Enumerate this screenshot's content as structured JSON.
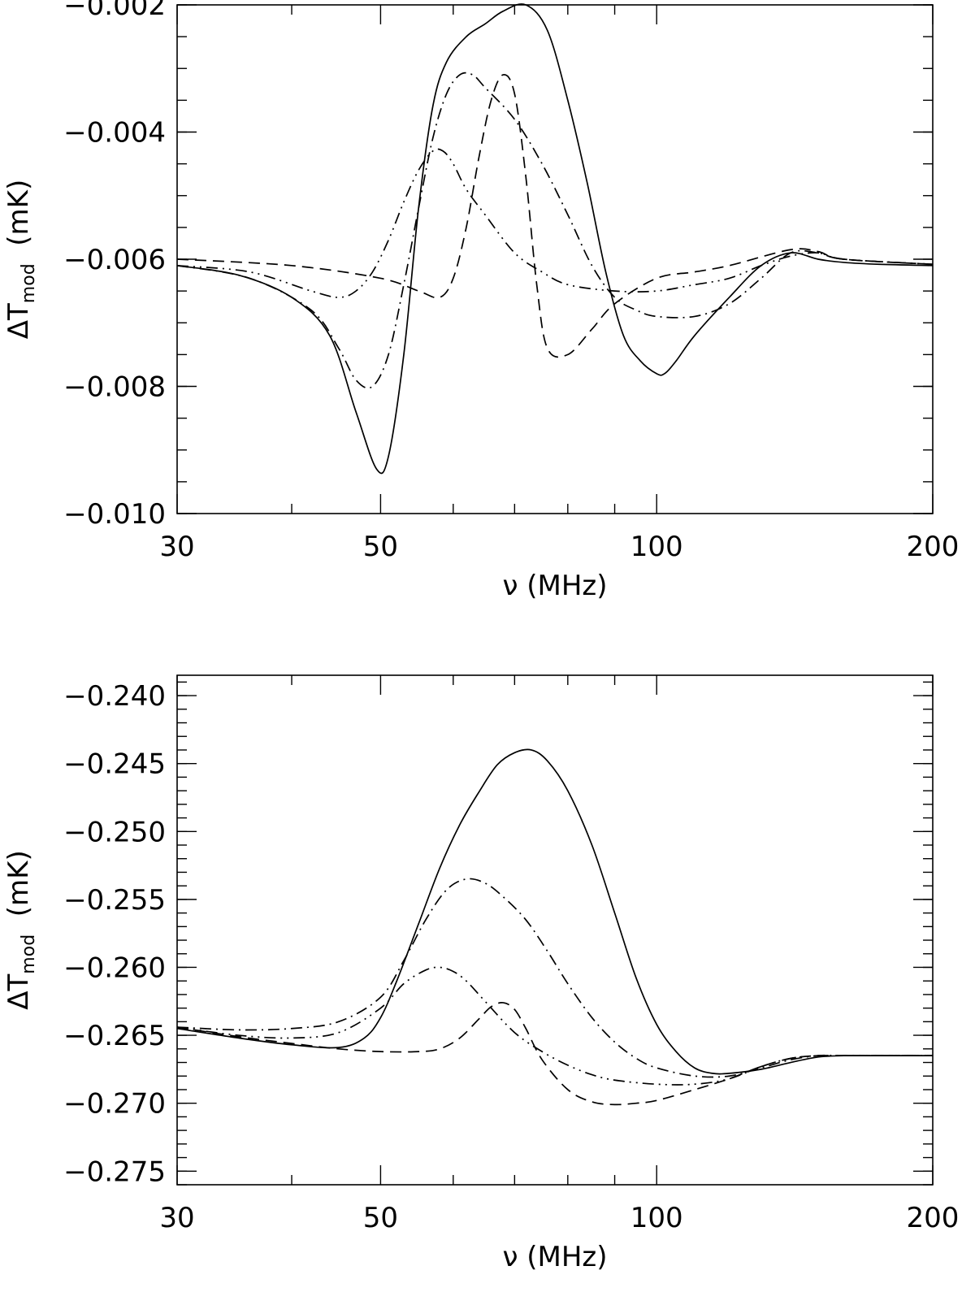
{
  "chart_data": [
    {
      "type": "line",
      "xlabel": "ν  (MHz)",
      "ylabel_main": "ΔT",
      "ylabel_sub": "mod",
      "ylabel_unit": "  (mK)",
      "xscale": "log",
      "xlim": [
        30,
        200
      ],
      "ylim": [
        -0.01,
        -0.002
      ],
      "xticks": [
        30,
        50,
        100,
        200
      ],
      "xtick_labels": [
        "30",
        "50",
        "100",
        "200"
      ],
      "yticks": [
        -0.01,
        -0.008,
        -0.006,
        -0.004,
        -0.002
      ],
      "ytick_labels": [
        "−0.010",
        "−0.008",
        "−0.006",
        "−0.004",
        "−0.002"
      ],
      "yminor_step": 0.0005,
      "grid": false,
      "series": [
        {
          "style": "solid",
          "x": [
            30,
            35,
            40,
            44,
            47,
            49.5,
            51,
            53,
            55,
            57,
            59,
            62,
            65,
            68,
            72,
            76,
            80,
            84,
            88,
            92,
            96,
            100,
            102,
            105,
            110,
            120,
            130,
            140,
            150,
            160,
            175,
            200
          ],
          "y": [
            -0.0061,
            -0.00625,
            -0.0066,
            -0.0072,
            -0.0084,
            -0.0093,
            -0.0091,
            -0.0075,
            -0.0052,
            -0.0036,
            -0.0029,
            -0.0025,
            -0.0023,
            -0.0021,
            -0.002,
            -0.0024,
            -0.0035,
            -0.0048,
            -0.0062,
            -0.0072,
            -0.0076,
            -0.0078,
            -0.0078,
            -0.0076,
            -0.0072,
            -0.0066,
            -0.0061,
            -0.0059,
            -0.006,
            -0.00605,
            -0.00608,
            -0.0061
          ]
        },
        {
          "style": "dash",
          "x": [
            30,
            40,
            50,
            55,
            58,
            60,
            62,
            64,
            66,
            68,
            70,
            72,
            74,
            76,
            80,
            85,
            90,
            100,
            110,
            120,
            140,
            150,
            160,
            200
          ],
          "y": [
            -0.006,
            -0.0061,
            -0.0063,
            -0.0065,
            -0.0066,
            -0.0063,
            -0.0055,
            -0.0044,
            -0.0035,
            -0.0031,
            -0.0034,
            -0.0047,
            -0.0064,
            -0.0074,
            -0.0075,
            -0.0071,
            -0.0067,
            -0.0063,
            -0.0062,
            -0.0061,
            -0.00585,
            -0.00588,
            -0.006,
            -0.00608
          ]
        },
        {
          "style": "dashdot",
          "x": [
            30,
            36,
            42,
            45,
            47,
            49,
            51,
            53,
            55,
            57,
            59,
            61,
            63,
            65,
            70,
            75,
            80,
            85,
            90,
            95,
            100,
            110,
            120,
            130,
            140,
            150,
            160,
            200
          ],
          "y": [
            -0.0061,
            -0.0063,
            -0.0068,
            -0.0074,
            -0.0079,
            -0.008,
            -0.0075,
            -0.0064,
            -0.0052,
            -0.0041,
            -0.0034,
            -0.0031,
            -0.0031,
            -0.0033,
            -0.0038,
            -0.0045,
            -0.0053,
            -0.0061,
            -0.0066,
            -0.0068,
            -0.0069,
            -0.0069,
            -0.0067,
            -0.0063,
            -0.0059,
            -0.0059,
            -0.006,
            -0.00608
          ]
        },
        {
          "style": "dashdotdot",
          "x": [
            30,
            36,
            42,
            45,
            47,
            49,
            51,
            53,
            55,
            57,
            58.5,
            60,
            62,
            65,
            70,
            75,
            80,
            90,
            100,
            110,
            120,
            130,
            140,
            150,
            160,
            200
          ],
          "y": [
            -0.0061,
            -0.0062,
            -0.0065,
            -0.0066,
            -0.0065,
            -0.0062,
            -0.0057,
            -0.0051,
            -0.0046,
            -0.0043,
            -0.0043,
            -0.0045,
            -0.0049,
            -0.0053,
            -0.0059,
            -0.0062,
            -0.0064,
            -0.0065,
            -0.0065,
            -0.0064,
            -0.0063,
            -0.0061,
            -0.00595,
            -0.0059,
            -0.006,
            -0.00608
          ]
        }
      ]
    },
    {
      "type": "line",
      "xlabel": "ν  (MHz)",
      "ylabel_main": "ΔT",
      "ylabel_sub": "mod",
      "ylabel_unit": "  (mK)",
      "xscale": "log",
      "xlim": [
        30,
        200
      ],
      "ylim": [
        -0.276,
        -0.2385
      ],
      "xticks": [
        30,
        50,
        100,
        200
      ],
      "xtick_labels": [
        "30",
        "50",
        "100",
        "200"
      ],
      "yticks": [
        -0.275,
        -0.27,
        -0.265,
        -0.26,
        -0.255,
        -0.25,
        -0.245,
        -0.24
      ],
      "ytick_labels": [
        "−0.275",
        "−0.270",
        "−0.265",
        "−0.260",
        "−0.255",
        "−0.250",
        "−0.245",
        "−0.240"
      ],
      "yminor_step": 0.001,
      "grid": false,
      "series": [
        {
          "style": "solid",
          "x": [
            30,
            35,
            40,
            45,
            48,
            50,
            52,
            55,
            58,
            61,
            64,
            67,
            70,
            73,
            76,
            80,
            85,
            90,
            95,
            100,
            105,
            110,
            115,
            120,
            130,
            140,
            150,
            160,
            170,
            200
          ],
          "y": [
            -0.2645,
            -0.2652,
            -0.2657,
            -0.2659,
            -0.2652,
            -0.2637,
            -0.2611,
            -0.2568,
            -0.2527,
            -0.2495,
            -0.2471,
            -0.2451,
            -0.2442,
            -0.244,
            -0.2448,
            -0.247,
            -0.251,
            -0.256,
            -0.2608,
            -0.2642,
            -0.2662,
            -0.2674,
            -0.2678,
            -0.2678,
            -0.2675,
            -0.267,
            -0.2666,
            -0.2665,
            -0.2665,
            -0.2665
          ]
        },
        {
          "style": "dash",
          "x": [
            30,
            35,
            40,
            45,
            50,
            55,
            58,
            61,
            64,
            66,
            68,
            70,
            72,
            75,
            80,
            85,
            90,
            95,
            100,
            110,
            120,
            130,
            140,
            150,
            160,
            200
          ],
          "y": [
            -0.2644,
            -0.2651,
            -0.2656,
            -0.266,
            -0.2662,
            -0.2662,
            -0.266,
            -0.2652,
            -0.2638,
            -0.2629,
            -0.2626,
            -0.2631,
            -0.2645,
            -0.2668,
            -0.269,
            -0.2699,
            -0.2701,
            -0.27,
            -0.2698,
            -0.269,
            -0.2682,
            -0.2673,
            -0.2667,
            -0.2665,
            -0.2665,
            -0.2665
          ]
        },
        {
          "style": "dashdot",
          "x": [
            30,
            35,
            40,
            45,
            50,
            53,
            56,
            59,
            62,
            65,
            68,
            72,
            76,
            80,
            85,
            90,
            95,
            100,
            110,
            120,
            130,
            140,
            150,
            160,
            200
          ],
          "y": [
            -0.2644,
            -0.2646,
            -0.2645,
            -0.264,
            -0.2622,
            -0.2595,
            -0.2565,
            -0.2543,
            -0.2535,
            -0.2538,
            -0.2548,
            -0.2565,
            -0.2588,
            -0.2612,
            -0.2637,
            -0.2655,
            -0.2667,
            -0.2674,
            -0.268,
            -0.268,
            -0.2674,
            -0.2668,
            -0.2665,
            -0.2665,
            -0.2665
          ]
        },
        {
          "style": "dashdotdot",
          "x": [
            30,
            35,
            40,
            45,
            50,
            53,
            56,
            58,
            60,
            62,
            65,
            70,
            75,
            80,
            85,
            90,
            100,
            110,
            120,
            130,
            140,
            150,
            160,
            200
          ],
          "y": [
            -0.2644,
            -0.265,
            -0.2652,
            -0.2648,
            -0.263,
            -0.2612,
            -0.2602,
            -0.26,
            -0.2603,
            -0.261,
            -0.2625,
            -0.2648,
            -0.2662,
            -0.2672,
            -0.2679,
            -0.2683,
            -0.2686,
            -0.2686,
            -0.2682,
            -0.2673,
            -0.2667,
            -0.2665,
            -0.2665,
            -0.2665
          ]
        }
      ]
    }
  ]
}
